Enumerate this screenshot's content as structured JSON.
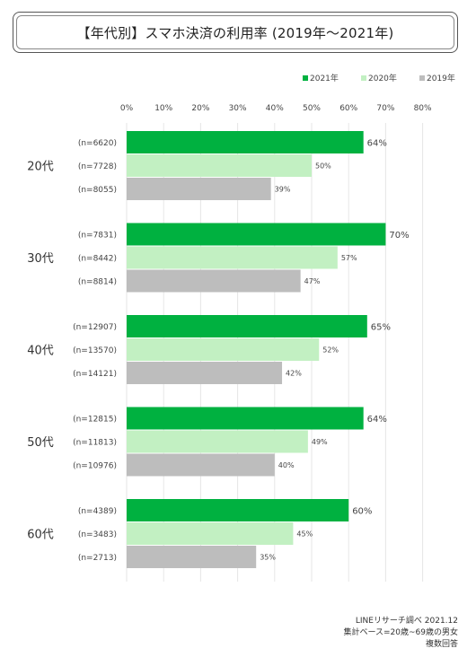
{
  "chart_data": {
    "type": "bar",
    "orientation": "horizontal",
    "title": "【年代別】スマホ決済の利用率 (2019年～2021年)",
    "xlim": [
      0,
      80
    ],
    "x_ticks": [
      "0%",
      "10%",
      "20%",
      "30%",
      "40%",
      "50%",
      "60%",
      "70%",
      "80%"
    ],
    "legend_position": "top-right",
    "grid": true,
    "series": [
      {
        "name": "2021年",
        "color": "#00b140"
      },
      {
        "name": "2020年",
        "color": "#c2f0c2"
      },
      {
        "name": "2019年",
        "color": "#bdbdbd"
      }
    ],
    "groups": [
      {
        "label": "20代",
        "bars": [
          {
            "n": "(n=6620)",
            "value": 64,
            "label": "64%"
          },
          {
            "n": "(n=7728)",
            "value": 50,
            "label": "50%"
          },
          {
            "n": "(n=8055)",
            "value": 39,
            "label": "39%"
          }
        ]
      },
      {
        "label": "30代",
        "bars": [
          {
            "n": "(n=7831)",
            "value": 70,
            "label": "70%"
          },
          {
            "n": "(n=8442)",
            "value": 57,
            "label": "57%"
          },
          {
            "n": "(n=8814)",
            "value": 47,
            "label": "47%"
          }
        ]
      },
      {
        "label": "40代",
        "bars": [
          {
            "n": "(n=12907)",
            "value": 65,
            "label": "65%"
          },
          {
            "n": "(n=13570)",
            "value": 52,
            "label": "52%"
          },
          {
            "n": "(n=14121)",
            "value": 42,
            "label": "42%"
          }
        ]
      },
      {
        "label": "50代",
        "bars": [
          {
            "n": "(n=12815)",
            "value": 64,
            "label": "64%"
          },
          {
            "n": "(n=11813)",
            "value": 49,
            "label": "49%"
          },
          {
            "n": "(n=10976)",
            "value": 40,
            "label": "40%"
          }
        ]
      },
      {
        "label": "60代",
        "bars": [
          {
            "n": "(n=4389)",
            "value": 60,
            "label": "60%"
          },
          {
            "n": "(n=3483)",
            "value": 45,
            "label": "45%"
          },
          {
            "n": "(n=2713)",
            "value": 35,
            "label": "35%"
          }
        ]
      }
    ]
  },
  "notes": {
    "source": "LINEリサーチ調べ 2021.12",
    "base": "集計ベース=20歳~69歳の男女",
    "answer": "複数回答"
  }
}
